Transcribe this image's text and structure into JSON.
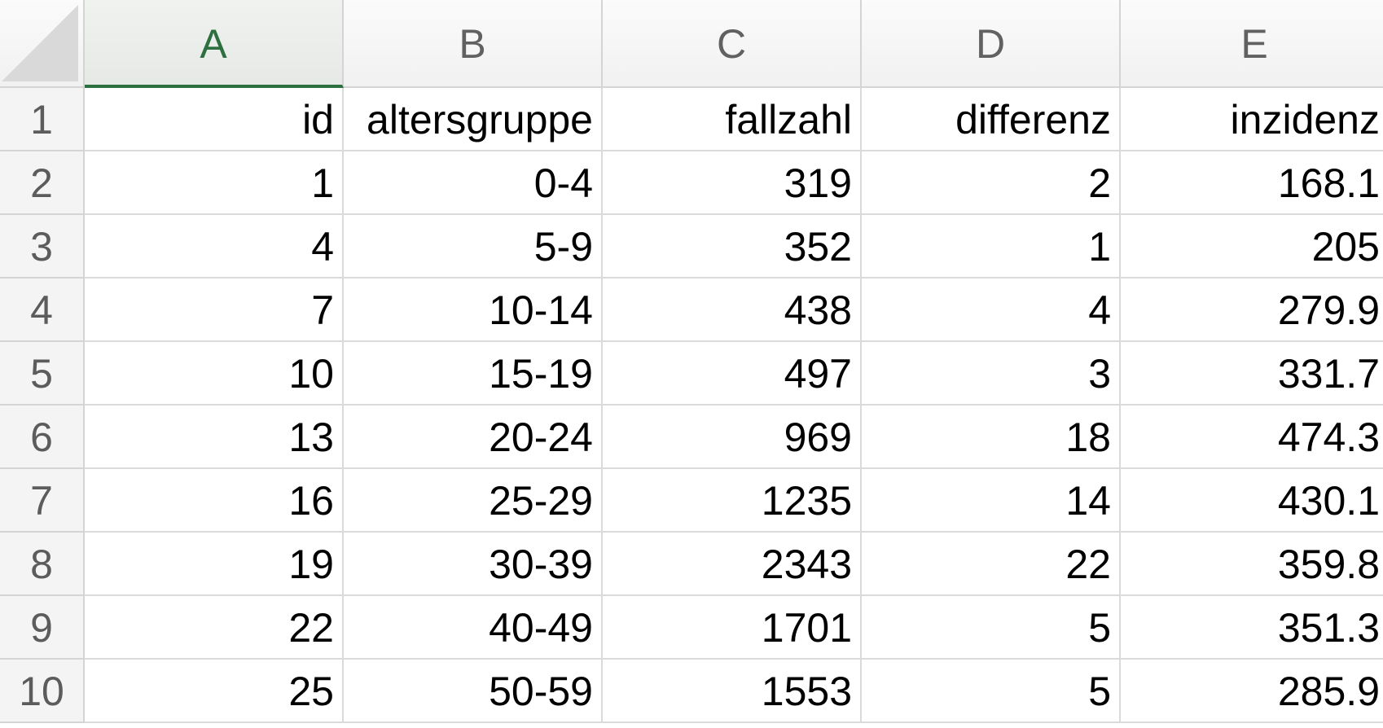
{
  "columns": [
    "A",
    "B",
    "C",
    "D",
    "E"
  ],
  "selected_column": "A",
  "row_numbers": [
    "1",
    "2",
    "3",
    "4",
    "5",
    "6",
    "7",
    "8",
    "9",
    "10"
  ],
  "rows": [
    [
      "id",
      "altersgruppe",
      "fallzahl",
      "differenz",
      "inzidenz"
    ],
    [
      "1",
      "0-4",
      "319",
      "2",
      "168.1"
    ],
    [
      "4",
      "5-9",
      "352",
      "1",
      "205"
    ],
    [
      "7",
      "10-14",
      "438",
      "4",
      "279.9"
    ],
    [
      "10",
      "15-19",
      "497",
      "3",
      "331.7"
    ],
    [
      "13",
      "20-24",
      "969",
      "18",
      "474.3"
    ],
    [
      "16",
      "25-29",
      "1235",
      "14",
      "430.1"
    ],
    [
      "19",
      "30-39",
      "2343",
      "22",
      "359.8"
    ],
    [
      "22",
      "40-49",
      "1701",
      "5",
      "351.3"
    ],
    [
      "25",
      "50-59",
      "1553",
      "5",
      "285.9"
    ]
  ],
  "colors": {
    "selected_header": "#2e6f40",
    "gridline": "#dadada",
    "header_text": "#616161"
  }
}
